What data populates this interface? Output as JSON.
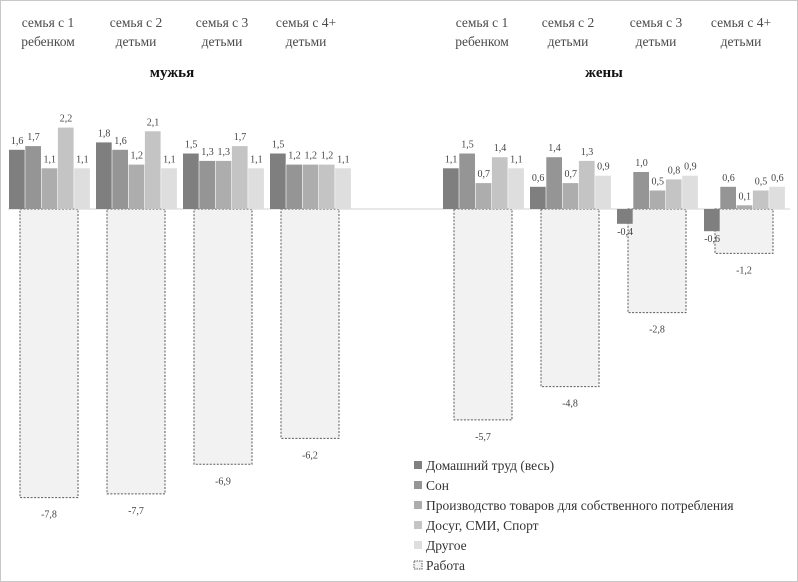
{
  "chart_data": {
    "type": "bar",
    "y_range": [
      -7.8,
      2.2
    ],
    "legend_position": "bottom-right",
    "colors": {
      "domestic": "#7f7f7f",
      "sleep": "#959595",
      "production": "#adadad",
      "leisure": "#c4c4c4",
      "other": "#dedede",
      "work_fill": "#f2f2f2",
      "work_stroke": "#5a5a5a",
      "border": "#c8c8c8",
      "axis": "#d0d0d0"
    },
    "legend": [
      {
        "key": "domestic",
        "label": "Домашний труд (весь)"
      },
      {
        "key": "sleep",
        "label": "Сон"
      },
      {
        "key": "production",
        "label": "Производство товаров для собственного потребления"
      },
      {
        "key": "leisure",
        "label": "Досуг, СМИ, Спорт"
      },
      {
        "key": "other",
        "label": "Другое"
      },
      {
        "key": "work",
        "label": "Работа"
      }
    ],
    "panels": [
      {
        "title": "мужья",
        "categories": [
          {
            "line1": "семья с 1",
            "line2": "ребенком",
            "domestic": 1.6,
            "sleep": 1.7,
            "production": 1.1,
            "leisure": 2.2,
            "other": 1.1,
            "work": -7.8,
            "labels": {
              "domestic": "1,6",
              "sleep": "1,7",
              "production": "1,1",
              "leisure": "2,2",
              "other": "1,1",
              "work": "-7,8"
            }
          },
          {
            "line1": "семья с 2",
            "line2": "детьми",
            "domestic": 1.8,
            "sleep": 1.6,
            "production": 1.2,
            "leisure": 2.1,
            "other": 1.1,
            "work": -7.7,
            "labels": {
              "domestic": "1,8",
              "sleep": "1,6",
              "production": "1,2",
              "leisure": "2,1",
              "other": "1,1",
              "work": "-7,7"
            }
          },
          {
            "line1": "семья с 3",
            "line2": "детьми",
            "domestic": 1.5,
            "sleep": 1.3,
            "production": 1.3,
            "leisure": 1.7,
            "other": 1.1,
            "work": -6.9,
            "labels": {
              "domestic": "1,5",
              "sleep": "1,3",
              "production": "1,3",
              "leisure": "1,7",
              "other": "1,1",
              "work": "-6,9"
            }
          },
          {
            "line1": "семья с 4+",
            "line2": "детьми",
            "domestic": 1.5,
            "sleep": 1.2,
            "production": 1.2,
            "leisure": 1.2,
            "other": 1.1,
            "work": -6.2,
            "labels": {
              "domestic": "1,5",
              "sleep": "1,2",
              "production": "1,2",
              "leisure": "1,2",
              "other": "1,1",
              "work": "-6,2"
            }
          }
        ]
      },
      {
        "title": "жены",
        "categories": [
          {
            "line1": "семья с 1",
            "line2": "ребенком",
            "domestic": 1.1,
            "sleep": 1.5,
            "production": 0.7,
            "leisure": 1.4,
            "other": 1.1,
            "work": -5.7,
            "labels": {
              "domestic": "1,1",
              "sleep": "1,5",
              "production": "0,7",
              "leisure": "1,4",
              "other": "1,1",
              "work": "-5,7"
            }
          },
          {
            "line1": "семья с 2",
            "line2": "детьми",
            "domestic": 0.6,
            "sleep": 1.4,
            "production": 0.7,
            "leisure": 1.3,
            "other": 0.9,
            "work": -4.8,
            "labels": {
              "domestic": "0,6",
              "sleep": "1,4",
              "production": "0,7",
              "leisure": "1,3",
              "other": "0,9",
              "work": "-4,8"
            }
          },
          {
            "line1": "семья с 3",
            "line2": "детьми",
            "domestic": -0.4,
            "sleep": 1.0,
            "production": 0.5,
            "leisure": 0.8,
            "other": 0.9,
            "work": -2.8,
            "labels": {
              "domestic": "-0,4",
              "sleep": "1,0",
              "production": "0,5",
              "leisure": "0,8",
              "other": "0,9",
              "work": "-2,8"
            }
          },
          {
            "line1": "семья с 4+",
            "line2": "детьми",
            "domestic": -0.6,
            "sleep": 0.6,
            "production": 0.1,
            "leisure": 0.5,
            "other": 0.6,
            "work": -1.2,
            "labels": {
              "domestic": "-0,6",
              "sleep": "0,6",
              "production": "0,1",
              "leisure": "0,5",
              "other": "0,6",
              "work": "-1,2"
            }
          }
        ]
      }
    ]
  }
}
